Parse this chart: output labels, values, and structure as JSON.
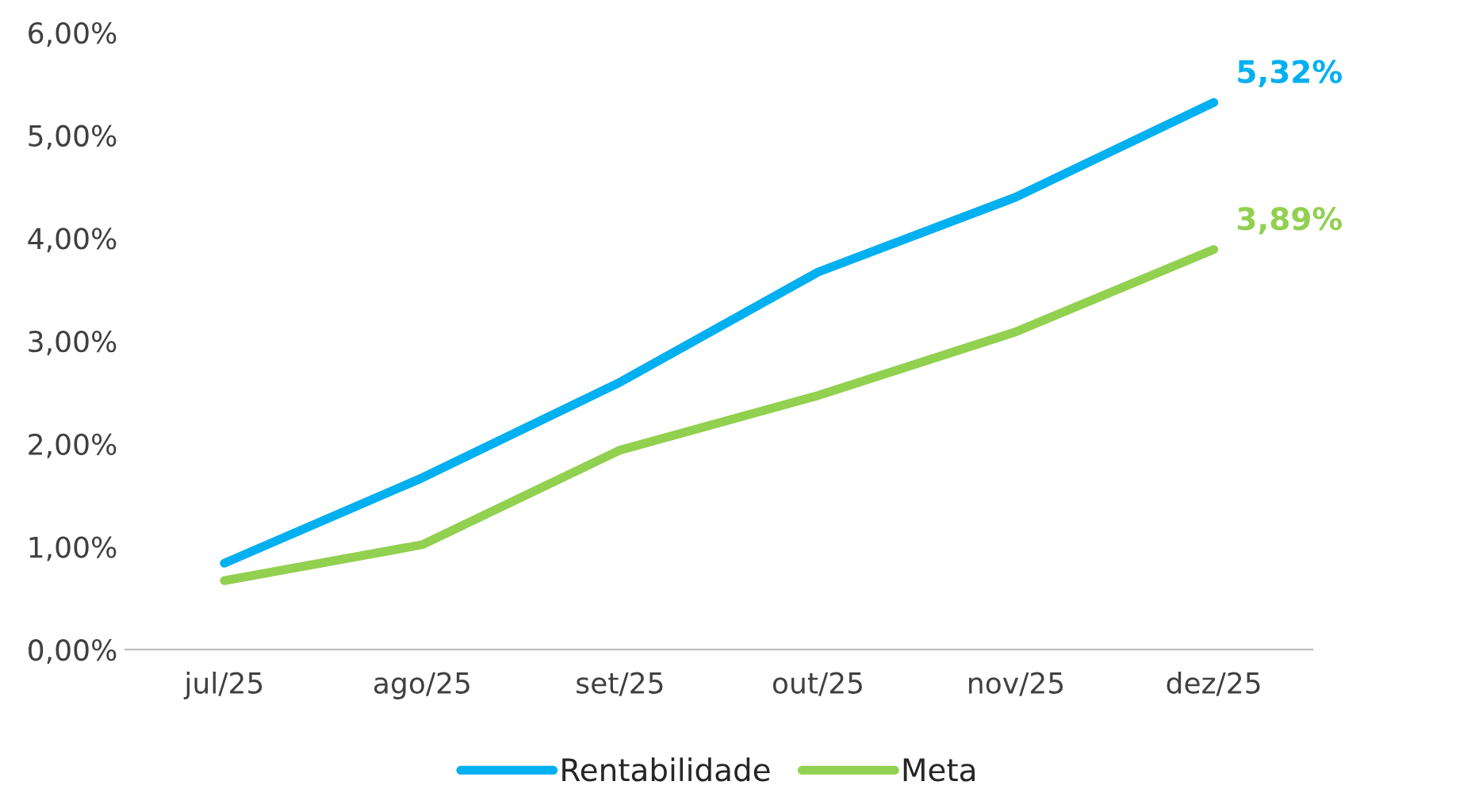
{
  "chart_data": {
    "type": "line",
    "categories": [
      "jul/25",
      "ago/25",
      "set/25",
      "out/25",
      "nov/25",
      "dez/25"
    ],
    "series": [
      {
        "name": "Rentabilidade",
        "color": "#00b0f0",
        "values": [
          0.84,
          1.67,
          2.6,
          3.67,
          4.4,
          5.32
        ],
        "value_labels": [
          null,
          null,
          null,
          null,
          null,
          "5,32%"
        ]
      },
      {
        "name": "Meta",
        "color": "#92d050",
        "values": [
          0.67,
          1.02,
          1.94,
          2.47,
          3.09,
          3.89
        ],
        "value_labels": [
          null,
          null,
          null,
          null,
          null,
          "3,89%"
        ]
      }
    ],
    "ylim": [
      0,
      6
    ],
    "yticks": [
      {
        "value": 0,
        "label": "0,00%"
      },
      {
        "value": 1,
        "label": "1,00%"
      },
      {
        "value": 2,
        "label": "2,00%"
      },
      {
        "value": 3,
        "label": "3,00%"
      },
      {
        "value": 4,
        "label": "4,00%"
      },
      {
        "value": 5,
        "label": "5,00%"
      },
      {
        "value": 6,
        "label": "6,00%"
      }
    ],
    "grid": false,
    "legend": "bottom",
    "marker": "none",
    "line_style": "solid"
  }
}
